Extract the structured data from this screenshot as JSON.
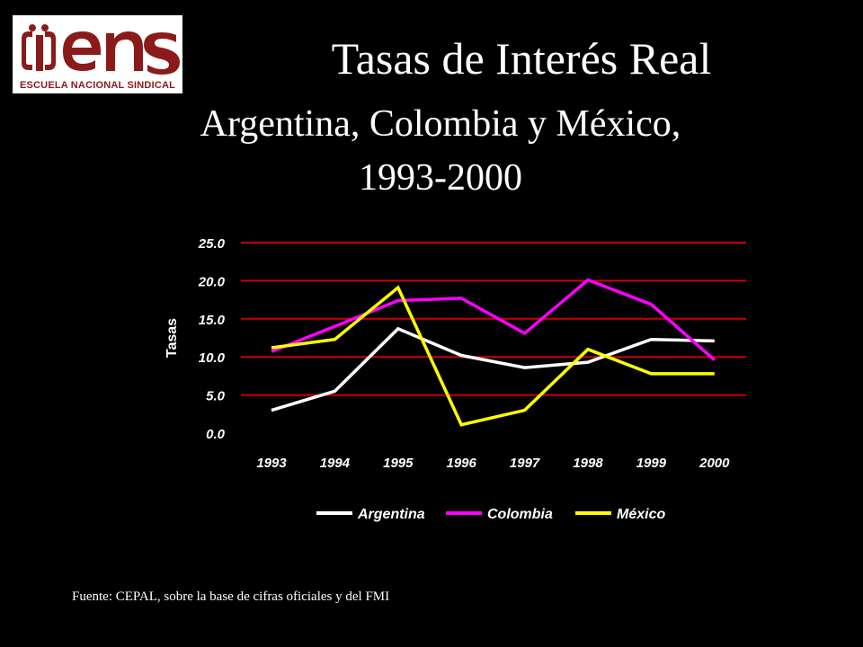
{
  "logo": {
    "name": "ens",
    "caption": "ESCUELA NACIONAL SINDICAL",
    "color": "#8b1a1a"
  },
  "header": {
    "title": "Tasas de Interés Real",
    "subtitle_line1": "Argentina, Colombia y México,",
    "subtitle_line2": "1993-2000"
  },
  "footer": {
    "source": "Fuente: CEPAL, sobre la base de cifras oficiales y del FMI"
  },
  "chart_data": {
    "type": "line",
    "ylabel": "Tasas",
    "xlabel": "",
    "ylim": [
      0,
      25
    ],
    "yticks": [
      "0.0",
      "5.0",
      "10.0",
      "15.0",
      "20.0",
      "25.0"
    ],
    "categories": [
      "1993",
      "1994",
      "1995",
      "1996",
      "1997",
      "1998",
      "1999",
      "2000"
    ],
    "grid": true,
    "grid_color": "#cc0000",
    "legend_position": "bottom",
    "series": [
      {
        "name": "Argentina",
        "color": "#ffffff",
        "values": [
          3.0,
          5.5,
          13.7,
          10.2,
          8.6,
          9.3,
          12.3,
          12.1
        ]
      },
      {
        "name": "Colombia",
        "color": "#ff00ff",
        "values": [
          10.7,
          14.0,
          17.4,
          17.7,
          13.1,
          20.1,
          16.9,
          9.6
        ]
      },
      {
        "name": "México",
        "color": "#ffff00",
        "values": [
          11.2,
          12.3,
          19.1,
          1.1,
          3.0,
          11.0,
          7.8,
          7.8
        ]
      }
    ]
  }
}
